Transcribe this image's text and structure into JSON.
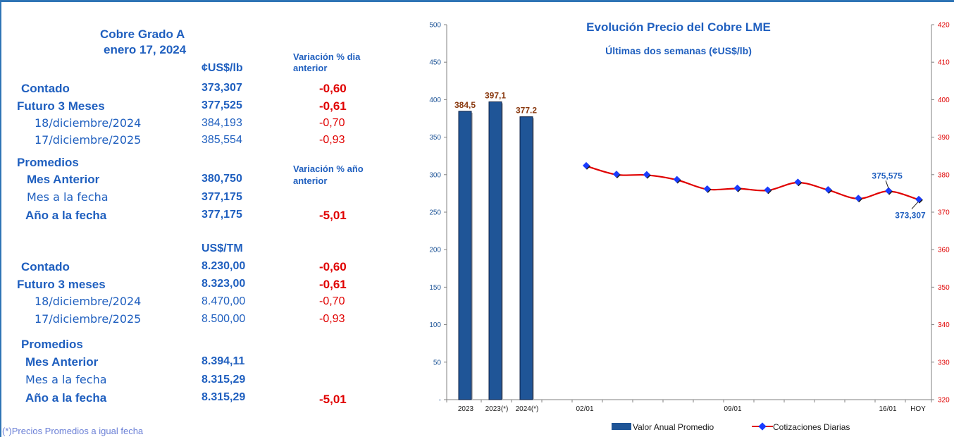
{
  "table": {
    "title": "Cobre Grado A",
    "date": "enero 17, 2024",
    "unit_lb": "¢US$/lb",
    "var_dia_label_1": "Variación % dia",
    "var_dia_label_2": "anterior",
    "var_anio_label_1": "Variación % año",
    "var_anio_label_2": "anterior",
    "unit_tm": "US$/TM",
    "lb_rows": [
      {
        "label": "Contado",
        "value": "373,307",
        "change": "-0,60"
      },
      {
        "label": "Futuro 3 Meses",
        "value": "377,525",
        "change": "-0,61"
      },
      {
        "label": "18/diciembre/2024",
        "value": "384,193",
        "change": "-0,70"
      },
      {
        "label": "17/diciembre/2025",
        "value": "385,554",
        "change": "-0,93"
      }
    ],
    "promedios_label": "Promedios",
    "lb_prom": [
      {
        "label": "Mes Anterior",
        "value": "380,750",
        "change": ""
      },
      {
        "label": "Mes a la fecha",
        "value": "377,175",
        "change": ""
      },
      {
        "label": "Año a la fecha",
        "value": "377,175",
        "change": "-5,01"
      }
    ],
    "tm_rows": [
      {
        "label": "Contado",
        "value": "8.230,00",
        "change": "-0,60"
      },
      {
        "label": "Futuro 3 meses",
        "value": "8.323,00",
        "change": "-0,61"
      },
      {
        "label": "18/diciembre/2024",
        "value": "8.470,00",
        "change": "-0,70"
      },
      {
        "label": "17/diciembre/2025",
        "value": "8.500,00",
        "change": "-0,93"
      }
    ],
    "tm_prom": [
      {
        "label": "Mes Anterior",
        "value": "8.394,11",
        "change": ""
      },
      {
        "label": "Mes a la fecha",
        "value": "8.315,29",
        "change": ""
      },
      {
        "label": "Año a la fecha",
        "value": "8.315,29",
        "change": "-5,01"
      }
    ],
    "footnote": "(*)Precios Promedios a igual  fecha"
  },
  "chart_data": {
    "type": "bar+line",
    "title": "Evolución Precio del Cobre LME",
    "subtitle": "Últimas dos semanas (¢US$/lb)",
    "bar_series": {
      "name": "Valor Anual Promedio",
      "categories": [
        "2023",
        "2023(*)",
        "2024(*)"
      ],
      "values": [
        384.5,
        397.1,
        377.2
      ],
      "labels": [
        "384,5",
        "397,1",
        "377.2"
      ],
      "color": "#1f5597",
      "axis": "left"
    },
    "line_series": {
      "name": "Cotizaciones Diarias",
      "values": [
        382.3,
        380.0,
        379.9,
        378.6,
        376.1,
        376.3,
        375.8,
        377.9,
        375.9,
        373.6,
        375.575,
        373.307
      ],
      "annotations": [
        "375,575",
        "373,307"
      ],
      "line_color": "#e00000",
      "marker_color": "#1a3cff",
      "axis": "right"
    },
    "x_tick_labels": [
      "2023",
      "2023(*)",
      "2024(*)",
      "02/01",
      "09/01",
      "16/01",
      "HOY"
    ],
    "y_left": {
      "range": [
        0,
        500
      ],
      "ticks": [
        "-",
        "50",
        "100",
        "150",
        "200",
        "250",
        "300",
        "350",
        "400",
        "450",
        "500"
      ],
      "color": "#1f5597"
    },
    "y_right": {
      "range": [
        320,
        420
      ],
      "ticks": [
        "320",
        "330",
        "340",
        "350",
        "360",
        "370",
        "380",
        "390",
        "400",
        "410",
        "420"
      ],
      "color": "#e00000"
    },
    "legend_position": "bottom"
  }
}
